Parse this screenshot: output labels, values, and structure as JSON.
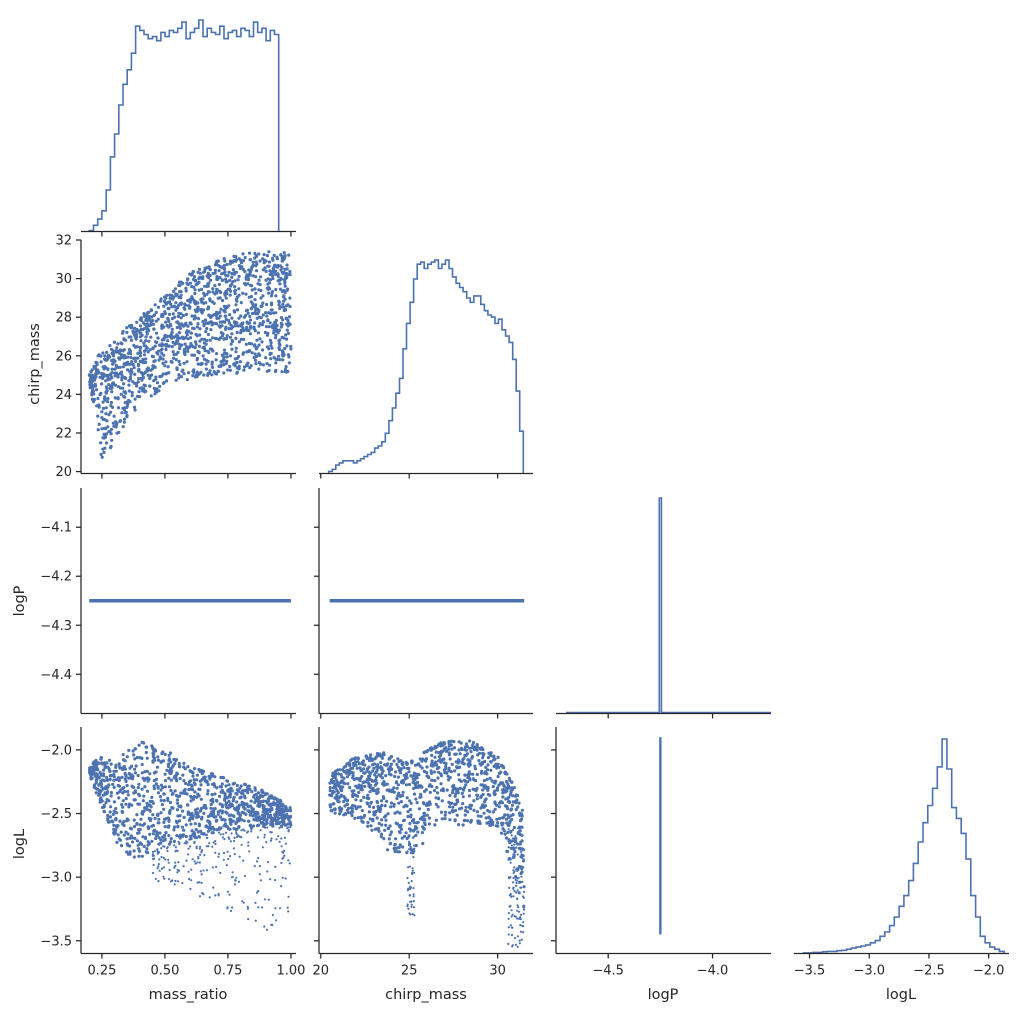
{
  "chart_data": {
    "type": "scatter",
    "variables": [
      "mass_ratio",
      "chirp_mass",
      "logP",
      "logL"
    ],
    "series_color": "#4c72b0",
    "layout": "corner",
    "grid": false,
    "legend": "none",
    "axes": {
      "mass_ratio": {
        "label": "mass_ratio",
        "range": [
          0.167,
          1.02
        ],
        "ticks": [
          0.25,
          0.5,
          0.75,
          1.0
        ],
        "tick_labels": [
          "0.25",
          "0.50",
          "0.75",
          "1.00"
        ]
      },
      "chirp_mass": {
        "label": "chirp_mass",
        "range": [
          19.9,
          32.0
        ],
        "ticks": [
          20,
          25,
          30
        ],
        "tick_labels": [
          "20",
          "25",
          "30"
        ],
        "y_ticks": [
          20,
          22,
          24,
          26,
          28,
          30,
          32
        ],
        "y_tick_labels": [
          "20",
          "22",
          "24",
          "26",
          "28",
          "30",
          "32"
        ]
      },
      "logP": {
        "label": "logP",
        "range": [
          -4.48,
          -4.02
        ],
        "ticks": [
          -4.4,
          -4.3,
          -4.2,
          -4.1
        ],
        "tick_labels": [
          "−4.4",
          "−4.3",
          "−4.2",
          "−4.1"
        ],
        "x_range": [
          -4.75,
          -3.72
        ],
        "x_ticks": [
          -4.5,
          -4.0
        ],
        "x_tick_labels": [
          "−4.5",
          "−4.0"
        ]
      },
      "logL": {
        "label": "logL",
        "range": [
          -3.6,
          -1.82
        ],
        "ticks": [
          -3.5,
          -3.0,
          -2.5,
          -2.0
        ],
        "tick_labels": [
          "−3.5",
          "−3.0",
          "−2.5",
          "−2.0"
        ],
        "x_range": [
          -3.63,
          -1.83
        ],
        "x_ticks": [
          -3.5,
          -3.0,
          -2.5,
          -2.0
        ],
        "x_tick_labels": [
          "−3.5",
          "−3.0",
          "−2.5",
          "−2.0"
        ]
      }
    },
    "histograms": {
      "mass_ratio": {
        "edges_start": 0.2,
        "bin_width": 0.0167,
        "counts": [
          0.5,
          3,
          6,
          10,
          20,
          36,
          47,
          61,
          71,
          78,
          86,
          99,
          97,
          95,
          93,
          94,
          92,
          96,
          94,
          97,
          96,
          98,
          101,
          93,
          96,
          98,
          102,
          94,
          98,
          96,
          95,
          99,
          93,
          96,
          97,
          94,
          98,
          97,
          94,
          101,
          96,
          98,
          92,
          97,
          95
        ]
      },
      "chirp_mass": {
        "edges_start": 20.45,
        "bin_width": 0.2,
        "counts": [
          1,
          2,
          4,
          5,
          6,
          6,
          6,
          5,
          6,
          7,
          8,
          9,
          10,
          12,
          13,
          15,
          19,
          25,
          31,
          38,
          45,
          59,
          71,
          81,
          92,
          99,
          100,
          97,
          99,
          100,
          101,
          97,
          99,
          101,
          97,
          93,
          90,
          88,
          86,
          83,
          81,
          84,
          84,
          80,
          77,
          75,
          74,
          71,
          73,
          68,
          65,
          62,
          54,
          39,
          20
        ]
      },
      "logP": {
        "peak_value": -4.25,
        "bin_range": [
          -4.255,
          -4.245
        ],
        "relative_height": 1.0
      },
      "logL": {
        "edges_start": -3.55,
        "bin_width": 0.04,
        "counts": [
          0.3,
          0.3,
          0.5,
          0.5,
          0.8,
          1,
          1,
          1.3,
          1.5,
          2,
          2.5,
          3,
          3.5,
          4,
          5,
          6,
          8,
          10,
          13,
          17,
          22,
          27,
          34,
          42,
          52,
          61,
          69,
          77,
          87,
          100,
          86,
          68,
          63,
          56,
          44,
          27,
          17,
          8,
          5,
          3,
          2,
          1
        ]
      }
    },
    "scatter": {
      "mass_ratio_vs_chirp_mass": {
        "x": [
          0.2,
          0.25,
          0.3,
          0.35,
          0.4,
          0.5,
          0.6,
          0.7,
          0.8,
          0.9,
          1.0
        ],
        "y_min": [
          24.6,
          20.6,
          21.5,
          22.6,
          23.5,
          24.3,
          24.8,
          25.0,
          25.1,
          25.1,
          25.1
        ],
        "y_max": [
          25.4,
          26.3,
          26.8,
          27.5,
          28.0,
          29.2,
          30.3,
          30.9,
          31.3,
          31.4,
          31.4
        ]
      },
      "logP_constant": -4.25,
      "mass_ratio_vs_logL": {
        "x": [
          0.2,
          0.25,
          0.3,
          0.35,
          0.4,
          0.5,
          0.6,
          0.7,
          0.8,
          0.9,
          1.0
        ],
        "y_top": [
          -2.12,
          -2.05,
          -2.1,
          -2.0,
          -1.93,
          -2.0,
          -2.1,
          -2.2,
          -2.25,
          -2.32,
          -2.45
        ],
        "y_bottom": [
          -2.2,
          -2.45,
          -2.7,
          -2.85,
          -2.85,
          -2.75,
          -2.7,
          -2.65,
          -2.62,
          -2.6,
          -2.6
        ],
        "sparse_min": -3.55
      },
      "chirp_mass_vs_logL": {
        "x": [
          20.5,
          22,
          23.5,
          25,
          26,
          27,
          28.5,
          30,
          31,
          31.5
        ],
        "y_top": [
          -2.2,
          -2.05,
          -2.02,
          -2.1,
          -2.0,
          -1.93,
          -1.93,
          -2.05,
          -2.3,
          -2.5
        ],
        "y_bottom": [
          -2.5,
          -2.55,
          -2.7,
          -3.3,
          -2.6,
          -2.6,
          -2.6,
          -2.6,
          -3.0,
          -3.55
        ]
      },
      "logP_vs_logL": {
        "x": -4.25,
        "y_range": [
          -3.45,
          -1.9
        ]
      }
    }
  }
}
